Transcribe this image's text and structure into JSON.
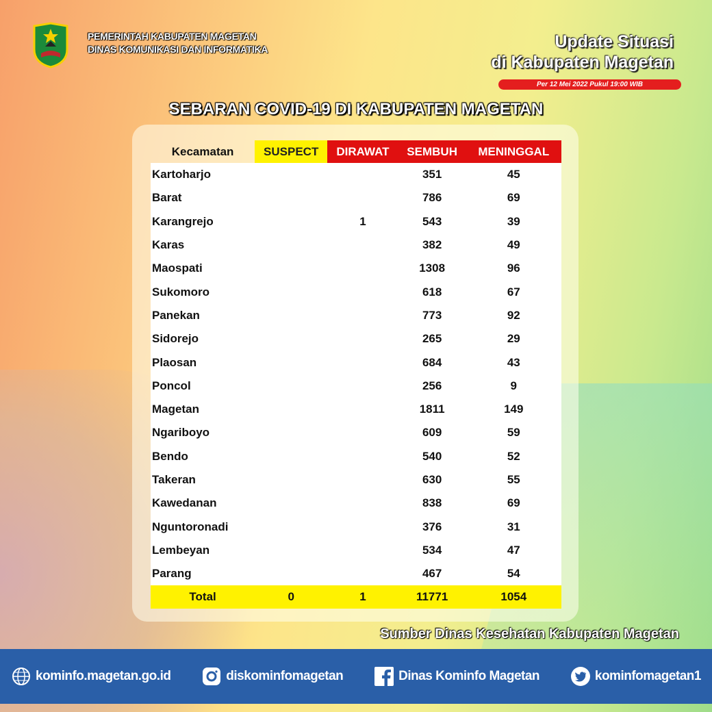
{
  "header": {
    "org_line1": "PEMERINTAH KABUPATEN MAGETAN",
    "org_line2": "DINAS KOMUNIKASI DAN INFORMATIKA",
    "update_line1": "Update Situasi",
    "update_line2": "di Kabupaten Magetan",
    "date": "Per 12 Mei 2022 Pukul 19:00 WIB"
  },
  "title": "SEBARAN COVID-19 DI KABUPATEN MAGETAN",
  "table": {
    "columns": [
      "Kecamatan",
      "SUSPECT",
      "DIRAWAT",
      "SEMBUH",
      "MENINGGAL"
    ],
    "rows": [
      [
        "Kartoharjo",
        "",
        "",
        "351",
        "45"
      ],
      [
        "Barat",
        "",
        "",
        "786",
        "69"
      ],
      [
        "Karangrejo",
        "",
        "1",
        "543",
        "39"
      ],
      [
        "Karas",
        "",
        "",
        "382",
        "49"
      ],
      [
        "Maospati",
        "",
        "",
        "1308",
        "96"
      ],
      [
        "Sukomoro",
        "",
        "",
        "618",
        "67"
      ],
      [
        "Panekan",
        "",
        "",
        "773",
        "92"
      ],
      [
        "Sidorejo",
        "",
        "",
        "265",
        "29"
      ],
      [
        "Plaosan",
        "",
        "",
        "684",
        "43"
      ],
      [
        "Poncol",
        "",
        "",
        "256",
        "9"
      ],
      [
        "Magetan",
        "",
        "",
        "1811",
        "149"
      ],
      [
        "Ngariboyo",
        "",
        "",
        "609",
        "59"
      ],
      [
        "Bendo",
        "",
        "",
        "540",
        "52"
      ],
      [
        "Takeran",
        "",
        "",
        "630",
        "55"
      ],
      [
        "Kawedanan",
        "",
        "",
        "838",
        "69"
      ],
      [
        "Nguntoronadi",
        "",
        "",
        "376",
        "31"
      ],
      [
        "Lembeyan",
        "",
        "",
        "534",
        "47"
      ],
      [
        "Parang",
        "",
        "",
        "467",
        "54"
      ]
    ],
    "total": [
      "Total",
      "0",
      "1",
      "11771",
      "1054"
    ]
  },
  "source": "Sumber Dinas Kesehatan Kabupaten Magetan",
  "footer": [
    {
      "icon": "globe-icon",
      "label": "kominfo.magetan.go.id"
    },
    {
      "icon": "instagram-icon",
      "label": "diskominfomagetan"
    },
    {
      "icon": "facebook-icon",
      "label": "Dinas Kominfo Magetan"
    },
    {
      "icon": "twitter-icon",
      "label": "kominfomagetan1"
    }
  ],
  "colors": {
    "header_yellow": "#fff200",
    "header_red": "#e01010",
    "footer_blue": "#2a5fa8"
  }
}
